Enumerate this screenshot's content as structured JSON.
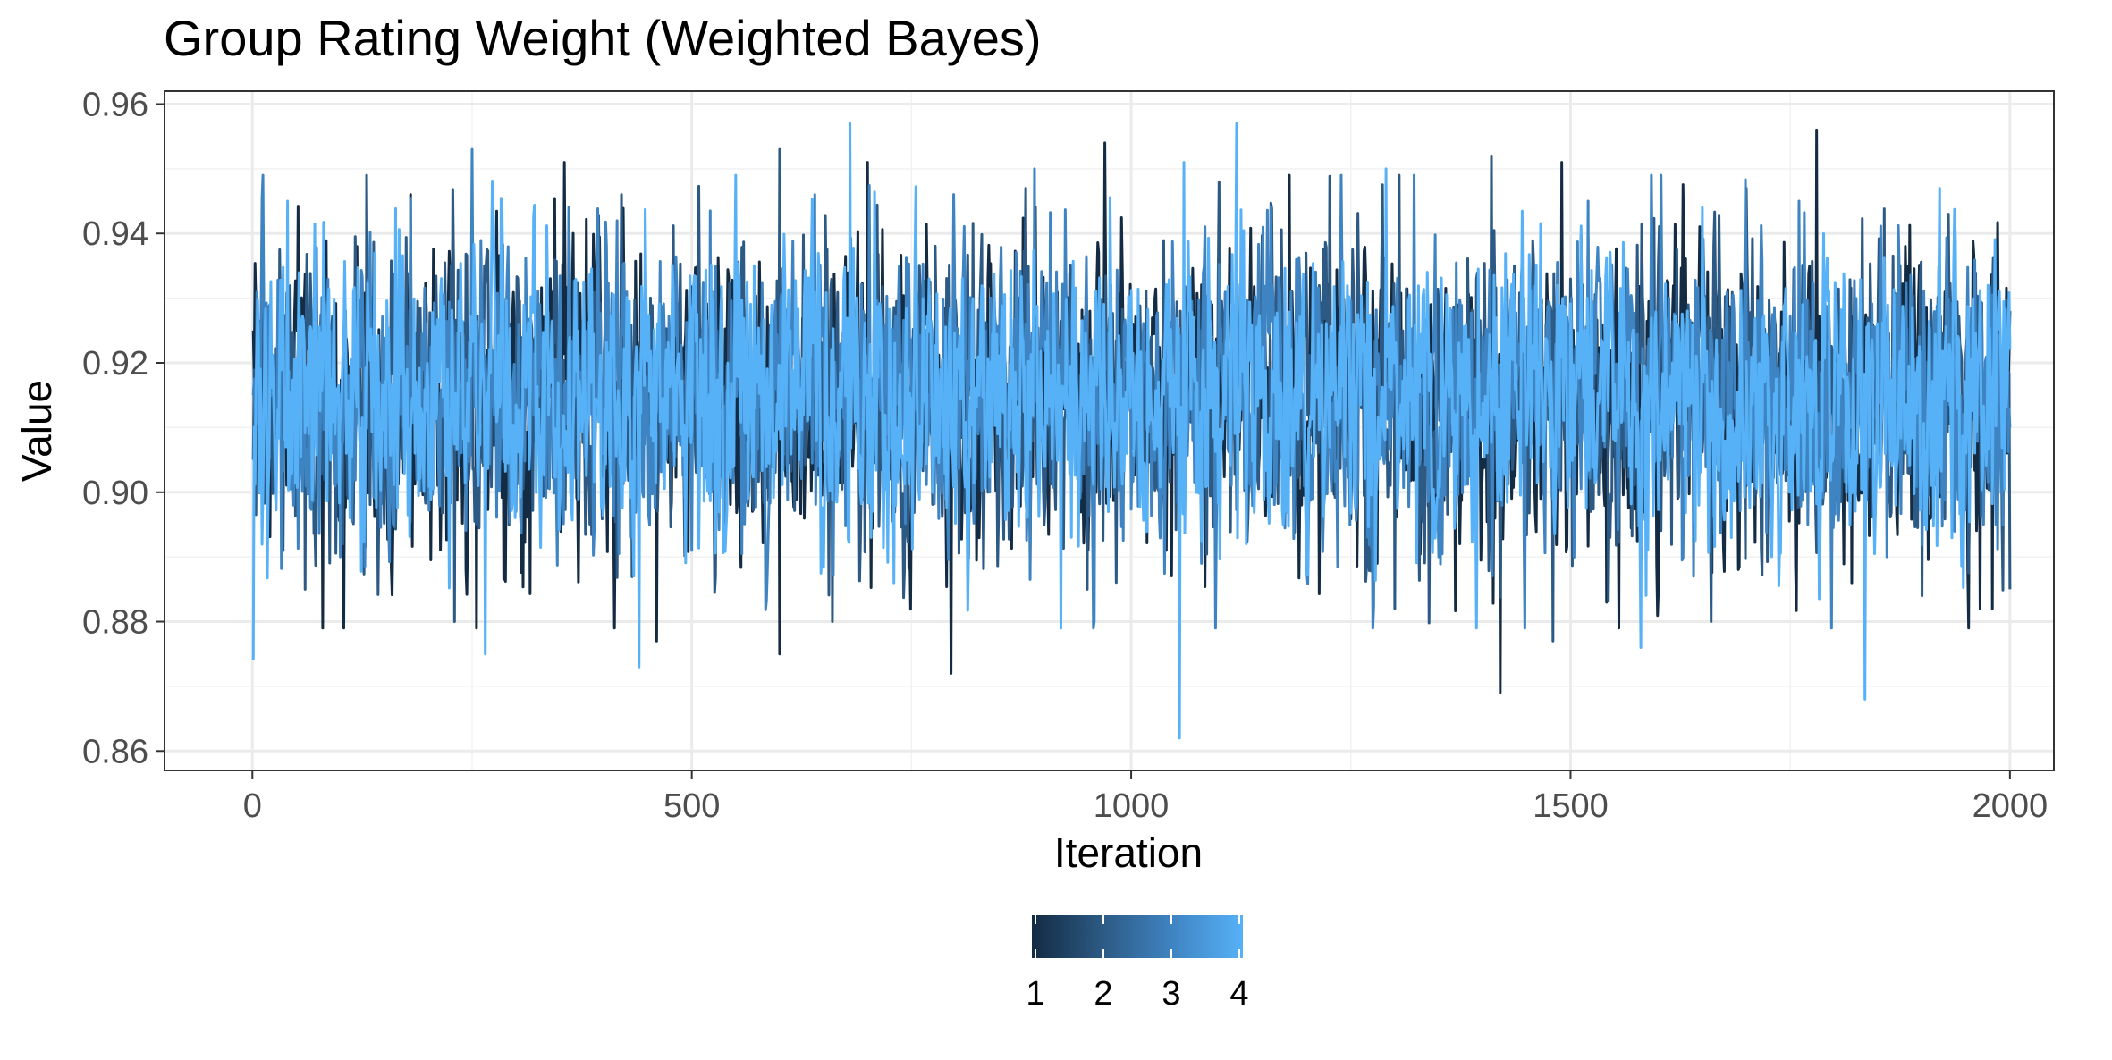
{
  "chart_data": {
    "type": "line",
    "title": "Group Rating Weight (Weighted Bayes)",
    "xlabel": "Iteration",
    "ylabel": "Value",
    "xlim": [
      -100,
      2050
    ],
    "ylim": [
      0.857,
      0.962
    ],
    "x_ticks": [
      0,
      500,
      1000,
      1500,
      2000
    ],
    "y_ticks": [
      0.86,
      0.88,
      0.9,
      0.92,
      0.94,
      0.96
    ],
    "x_tick_labels": [
      "0",
      "500",
      "1000",
      "1500",
      "2000"
    ],
    "y_tick_labels": [
      "0.86",
      "0.88",
      "0.90",
      "0.92",
      "0.94",
      "0.96"
    ],
    "grid": true,
    "legend": {
      "type": "colorbar",
      "placement": "bottom",
      "labels": [
        "1",
        "2",
        "3",
        "4"
      ],
      "colors": [
        "#132B43",
        "#2C5A84",
        "#3F84C2",
        "#56B1F7"
      ]
    },
    "series_style": {
      "colors": [
        "#132B43",
        "#2C5A84",
        "#3F84C2",
        "#56B1F7"
      ]
    },
    "trace_summary": {
      "iterations": [
        1,
        2000
      ],
      "center": 0.915,
      "typical_band": [
        0.885,
        0.945
      ],
      "observed_min": 0.862,
      "observed_max": 0.957
    },
    "series": [
      {
        "name": "1",
        "points": [
          [
            1,
            0.925
          ],
          [
            80,
            0.879
          ],
          [
            180,
            0.946
          ],
          [
            255,
            0.879
          ],
          [
            355,
            0.951
          ],
          [
            460,
            0.877
          ],
          [
            600,
            0.875
          ],
          [
            700,
            0.951
          ],
          [
            795,
            0.872
          ],
          [
            970,
            0.954
          ],
          [
            1040,
            0.891
          ],
          [
            1180,
            0.949
          ],
          [
            1280,
            0.889
          ],
          [
            1420,
            0.869
          ],
          [
            1490,
            0.951
          ],
          [
            1600,
            0.885
          ],
          [
            1780,
            0.956
          ],
          [
            1820,
            0.886
          ],
          [
            1980,
            0.882
          ],
          [
            2000,
            0.928
          ]
        ]
      },
      {
        "name": "2",
        "points": [
          [
            1,
            0.905
          ],
          [
            60,
            0.885
          ],
          [
            130,
            0.949
          ],
          [
            230,
            0.88
          ],
          [
            420,
            0.946
          ],
          [
            600,
            0.953
          ],
          [
            660,
            0.88
          ],
          [
            880,
            0.947
          ],
          [
            950,
            0.885
          ],
          [
            1100,
            0.948
          ],
          [
            1300,
            0.882
          ],
          [
            1410,
            0.952
          ],
          [
            1480,
            0.877
          ],
          [
            1660,
            0.88
          ],
          [
            1700,
            0.947
          ],
          [
            1900,
            0.884
          ],
          [
            2000,
            0.885
          ]
        ]
      },
      {
        "name": "3",
        "points": [
          [
            1,
            0.915
          ],
          [
            100,
            0.89
          ],
          [
            250,
            0.953
          ],
          [
            500,
            0.891
          ],
          [
            640,
            0.946
          ],
          [
            730,
            0.89
          ],
          [
            890,
            0.95
          ],
          [
            1080,
            0.889
          ],
          [
            1150,
            0.941
          ],
          [
            1350,
            0.89
          ],
          [
            1520,
            0.945
          ],
          [
            1640,
            0.887
          ],
          [
            1760,
            0.945
          ],
          [
            1860,
            0.89
          ],
          [
            2000,
            0.91
          ]
        ]
      },
      {
        "name": "4",
        "points": [
          [
            1,
            0.874
          ],
          [
            40,
            0.945
          ],
          [
            265,
            0.875
          ],
          [
            440,
            0.873
          ],
          [
            680,
            0.957
          ],
          [
            730,
            0.886
          ],
          [
            920,
            0.879
          ],
          [
            1055,
            0.862
          ],
          [
            1060,
            0.951
          ],
          [
            1120,
            0.957
          ],
          [
            1290,
            0.95
          ],
          [
            1580,
            0.876
          ],
          [
            1650,
            0.944
          ],
          [
            1835,
            0.868
          ],
          [
            1920,
            0.947
          ],
          [
            2000,
            0.922
          ]
        ]
      }
    ]
  }
}
